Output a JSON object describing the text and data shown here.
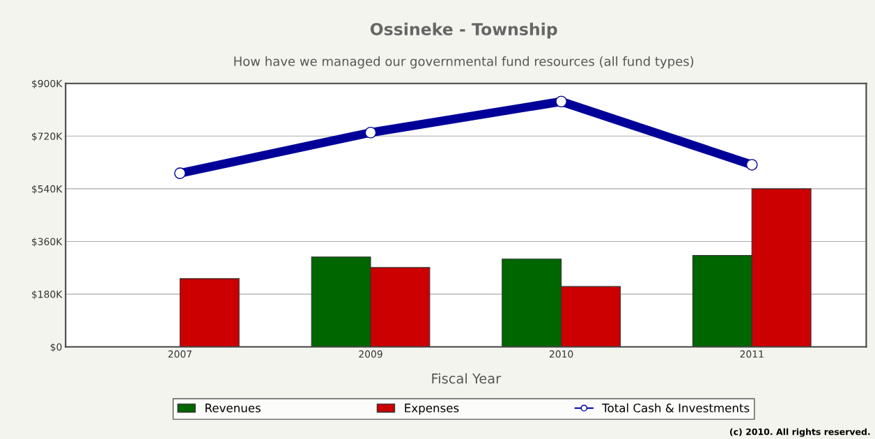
{
  "chart_data": {
    "type": "bar",
    "title": "Ossineke - Township",
    "subtitle": "How have we managed our governmental fund resources (all fund types)",
    "xlabel": "Fiscal Year",
    "categories": [
      "2007",
      "2009",
      "2010",
      "2011"
    ],
    "series": [
      {
        "name": "Revenues",
        "color": "#006600",
        "values": [
          null,
          307,
          300,
          312
        ]
      },
      {
        "name": "Expenses",
        "color": "#cc0000",
        "values": [
          233,
          271,
          206,
          540
        ]
      },
      {
        "name": "Total Cash & Investments",
        "type": "line",
        "color": "#000099",
        "values": [
          593,
          732,
          838,
          622
        ]
      }
    ],
    "ylim": [
      0,
      900
    ],
    "yticks": [
      {
        "value": 0,
        "label": "$0"
      },
      {
        "value": 180,
        "label": "$180K"
      },
      {
        "value": 360,
        "label": "$360K"
      },
      {
        "value": 540,
        "label": "$540K"
      },
      {
        "value": 720,
        "label": "$720K"
      },
      {
        "value": 900,
        "label": "$900K"
      }
    ],
    "grid": "y",
    "legend": "bottom",
    "marker": "circle",
    "annotations": [
      "(c) 2010. All rights reserved."
    ]
  }
}
